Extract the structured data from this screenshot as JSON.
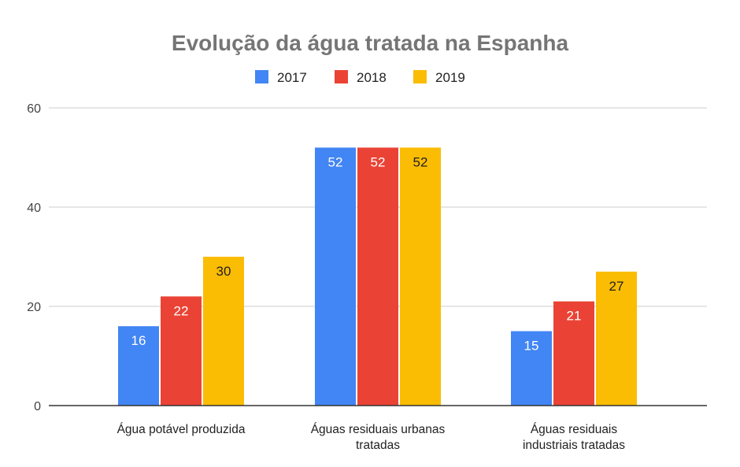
{
  "chart_data": {
    "type": "bar",
    "title": "Evolução da água tratada na Espanha",
    "xlabel": "",
    "ylabel": "",
    "categories": [
      [
        "Água potável produzida"
      ],
      [
        "Águas residuais urbanas",
        "tratadas"
      ],
      [
        "Águas residuais",
        "industriais tratadas"
      ]
    ],
    "series": [
      {
        "name": "2017",
        "values": [
          16,
          52,
          15
        ],
        "color": "#4285f4",
        "label_color": "#ffffff"
      },
      {
        "name": "2018",
        "values": [
          22,
          52,
          21
        ],
        "color": "#ea4335",
        "label_color": "#ffffff"
      },
      {
        "name": "2019",
        "values": [
          30,
          52,
          27
        ],
        "color": "#fbbc04",
        "label_color": "#222222"
      }
    ],
    "ylim": [
      0,
      60
    ],
    "yticks": [
      0,
      20,
      40,
      60
    ],
    "grid": true,
    "legend_position": "top"
  }
}
